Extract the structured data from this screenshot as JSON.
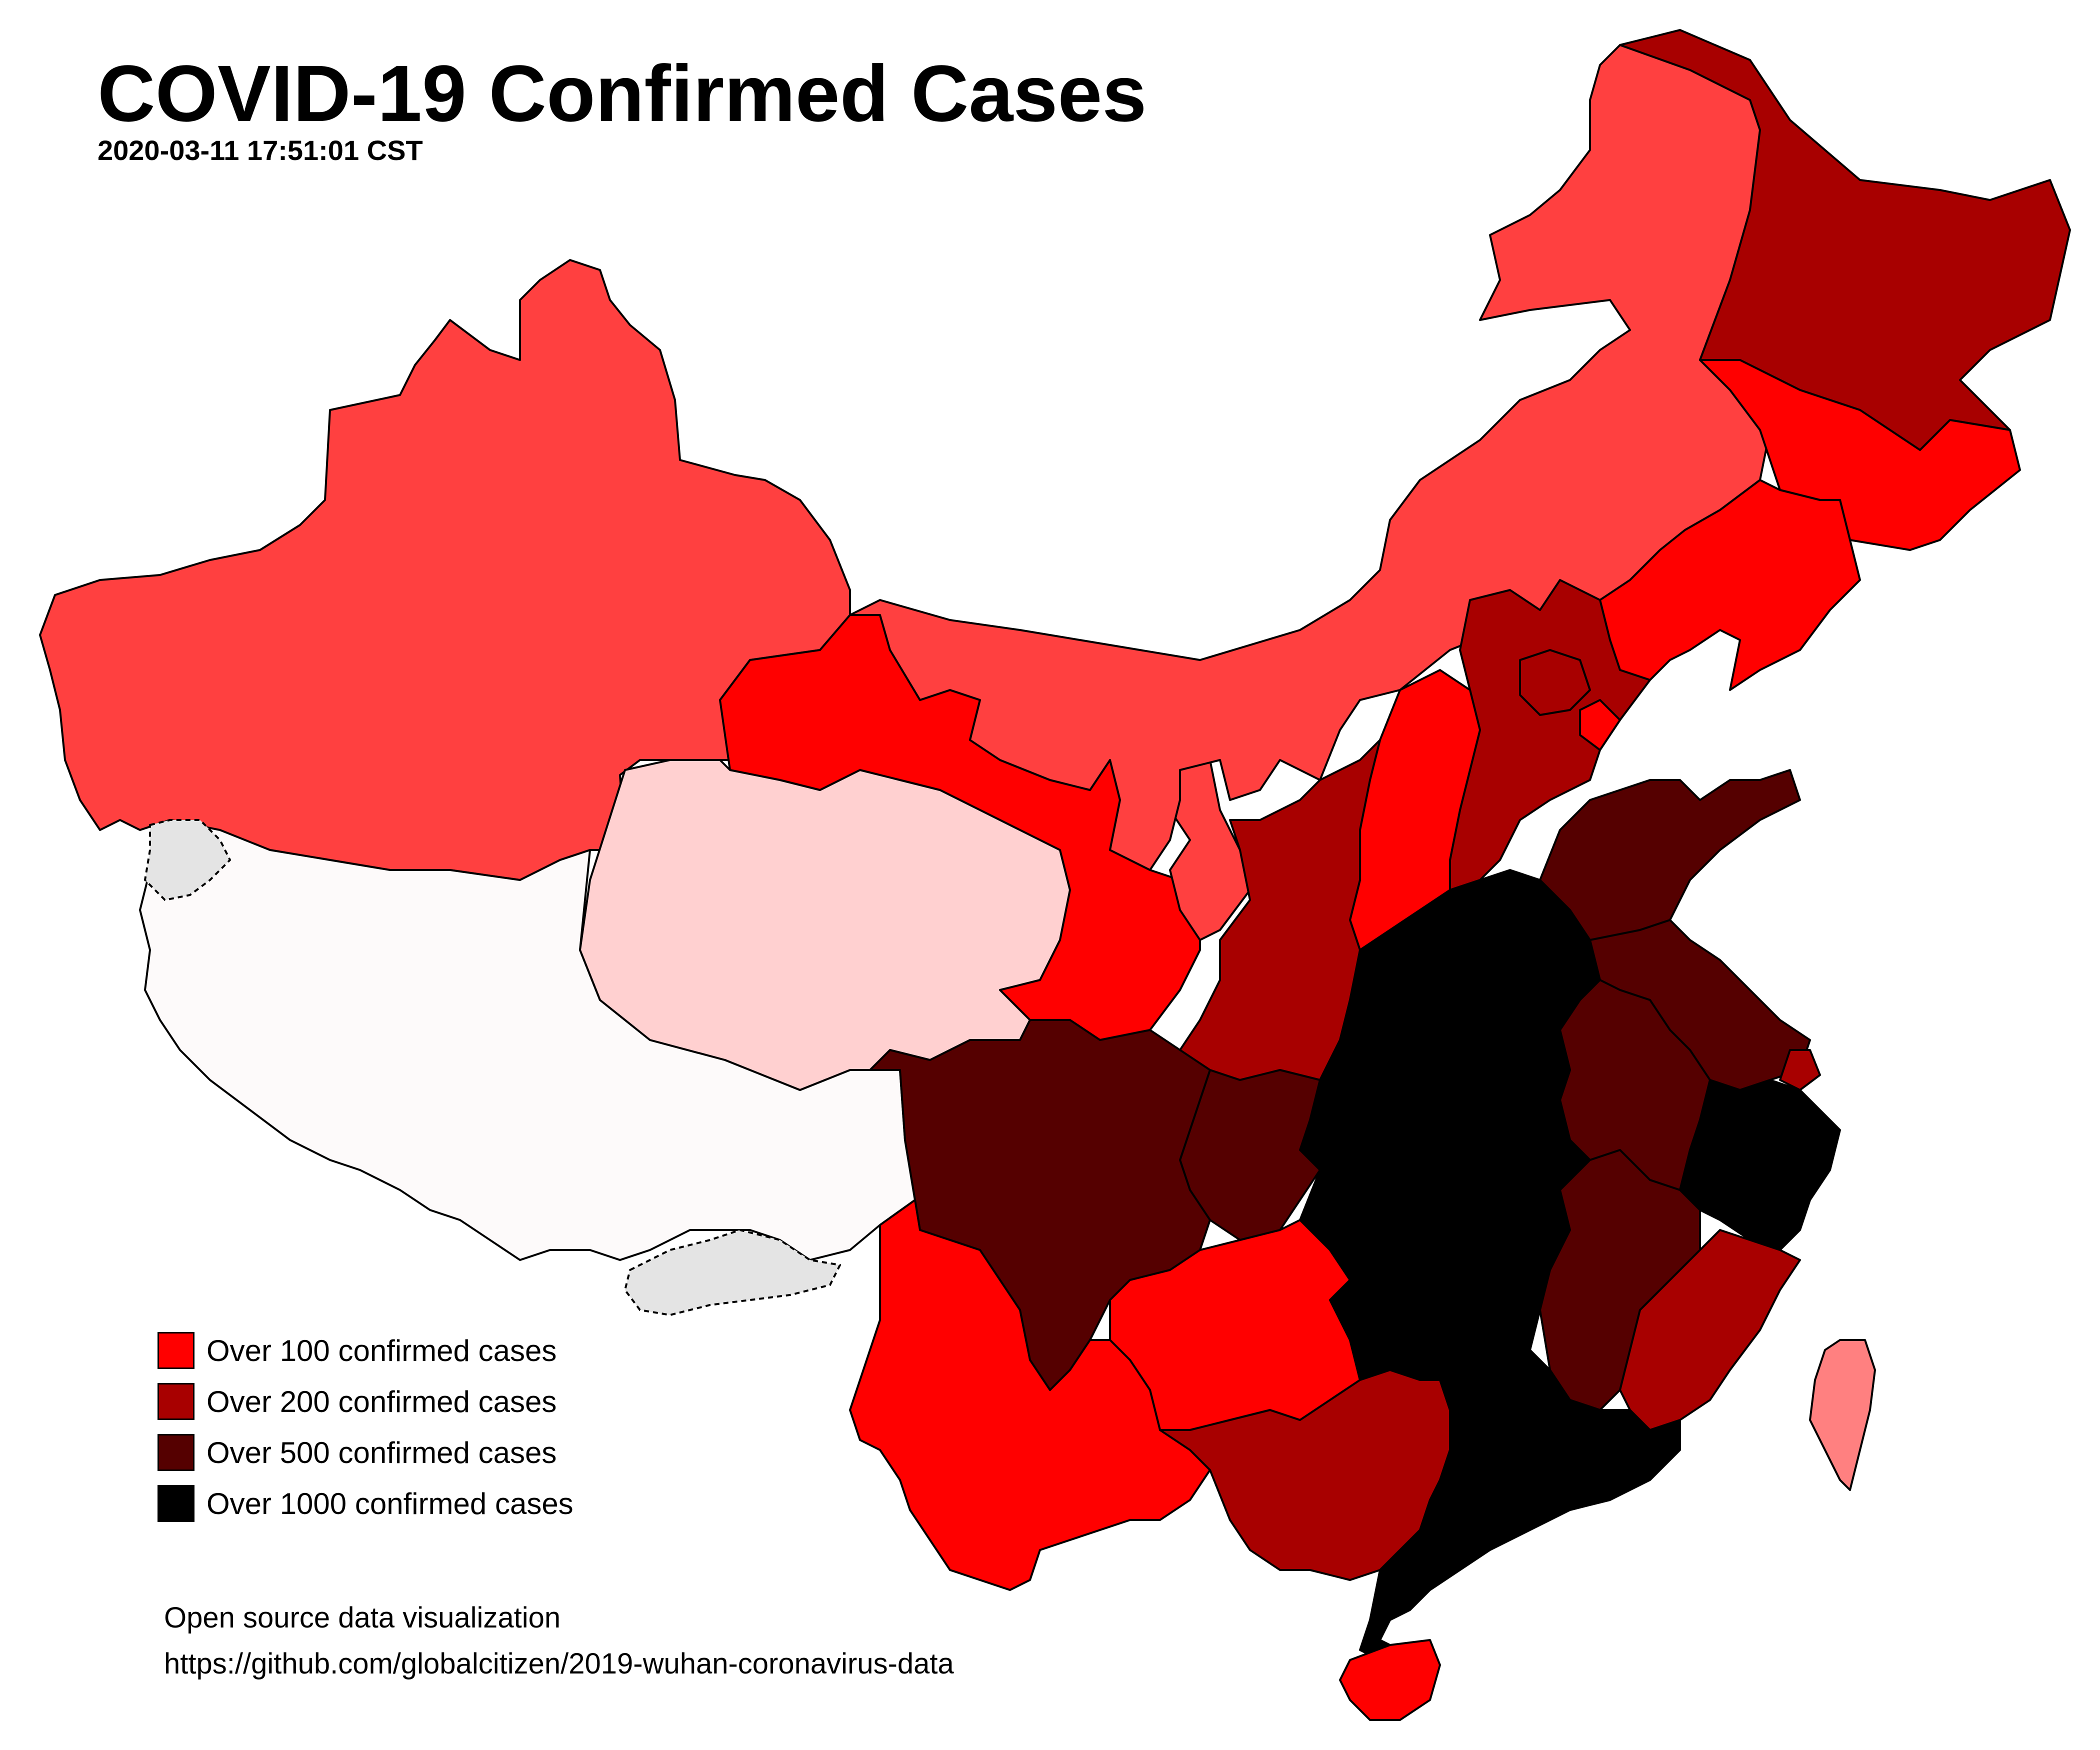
{
  "title": "COVID-19 Confirmed Cases",
  "timestamp": "2020-03-11 17:51:01 CST",
  "colors": {
    "level_none": "#FDFAFA",
    "level_10": "#FFD0D0",
    "level_50": "#FF8080",
    "level_pink": "#FF4040",
    "level_100": "#FF0000",
    "level_200": "#A80000",
    "level_500": "#550000",
    "level_1000": "#000000",
    "disputed": "#E4E4E4",
    "border": "#000000"
  },
  "legend": [
    {
      "label": "Over 100 confirmed cases",
      "color": "#FF0000"
    },
    {
      "label": "Over 200 confirmed cases",
      "color": "#A80000"
    },
    {
      "label": "Over 500 confirmed cases",
      "color": "#550000"
    },
    {
      "label": "Over 1000 confirmed cases",
      "color": "#000000"
    }
  ],
  "credit": {
    "line1": "Open source data visualization",
    "line2": "https://github.com/globalcitizen/2019-wuhan-coronavirus-data"
  }
}
